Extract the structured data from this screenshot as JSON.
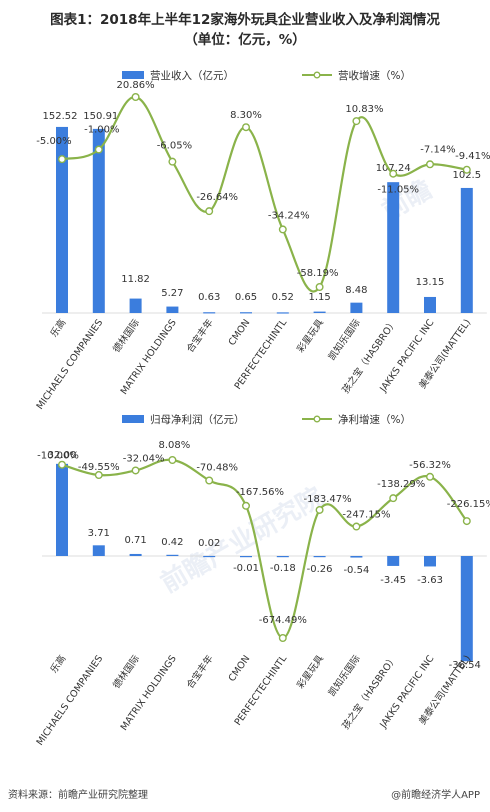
{
  "title": "图表1：2018年上半年12家海外玩具企业营业收入及净利润情况",
  "subtitle": "（单位：亿元，%）",
  "footer": {
    "source": "资料来源：前瞻产业研究院整理",
    "brand": "@前瞻经济学人APP"
  },
  "colors": {
    "bar": "#3b7ddd",
    "line": "#8ab34a",
    "marker_fill": "#ffffff"
  },
  "chart_data": [
    {
      "type": "bar+line",
      "legend": {
        "bar": "营业收入（亿元）",
        "line": "营收增速（%）",
        "position": "top"
      },
      "categories": [
        "乐高",
        "MICHAELS COMPANIES",
        "德林国际",
        "MATRIX HOLDINGS",
        "合宝丰年",
        "CMON",
        "PERFECTECHINTL",
        "彩星玩具",
        "凯知乐国际",
        "孩之宝（HASBRO）",
        "JAKKS PACIFIC INC",
        "美泰公司(MATTEL)"
      ],
      "series": [
        {
          "name": "营业收入（亿元）",
          "kind": "bar",
          "values": [
            152.52,
            150.91,
            11.82,
            5.27,
            0.63,
            0.65,
            0.52,
            1.15,
            8.48,
            107.24,
            13.15,
            102.5
          ],
          "labels": [
            "152.52",
            "150.91",
            "11.82",
            "5.27",
            "0.63",
            "0.65",
            "0.52",
            "1.15",
            "8.48",
            "107.24",
            "13.15",
            "102.5"
          ]
        },
        {
          "name": "营收增速（%）",
          "kind": "line",
          "values": [
            -5.0,
            -1.0,
            20.86,
            -6.05,
            -26.64,
            8.3,
            -34.24,
            -58.19,
            10.83,
            -11.05,
            -7.14,
            -9.41
          ],
          "labels": [
            "-5.00%",
            "-1.00%",
            "20.86%",
            "-6.05%",
            "-26.64%",
            "8.30%",
            "-34.24%",
            "-58.19%",
            "10.83%",
            "-11.05%",
            "-7.14%",
            "-9.41%"
          ]
        }
      ]
    },
    {
      "type": "bar+line",
      "legend": {
        "bar": "归母净利润（亿元）",
        "line": "净利增速（%）",
        "position": "top"
      },
      "categories": [
        "乐高",
        "MICHAELS COMPANIES",
        "德林国际",
        "MATRIX HOLDINGS",
        "合宝丰年",
        "CMON",
        "PERFECTECHINTL",
        "彩星玩具",
        "凯知乐国际",
        "孩之宝（HASBRO）",
        "JAKKS PACIFIC INC",
        "美泰公司(MATTEL)"
      ],
      "series": [
        {
          "name": "归母净利润（亿元）",
          "kind": "bar",
          "values": [
            32.0,
            3.71,
            0.71,
            0.42,
            0.02,
            -0.01,
            -0.18,
            -0.26,
            -0.54,
            -3.45,
            -3.63,
            -36.54
          ],
          "labels": [
            "32.00",
            "3.71",
            "0.71",
            "0.42",
            "0.02",
            "-0.01",
            "-0.18",
            "-0.26",
            "-0.54",
            "-3.45",
            "-3.63",
            "-36.54"
          ]
        },
        {
          "name": "净利增速（%）",
          "kind": "line",
          "values": [
            -10.0,
            -49.55,
            -32.04,
            8.08,
            -70.48,
            -167.56,
            -674.49,
            -183.47,
            -247.15,
            -138.29,
            -56.32,
            -226.15
          ],
          "labels": [
            "-10.00%",
            "-49.55%",
            "-32.04%",
            "8.08%",
            "-70.48%",
            "-167.56%",
            "-674.49%",
            "-183.47%",
            "-247.15%",
            "-138.29%",
            "-56.32%",
            "-226.15%"
          ]
        }
      ]
    }
  ]
}
